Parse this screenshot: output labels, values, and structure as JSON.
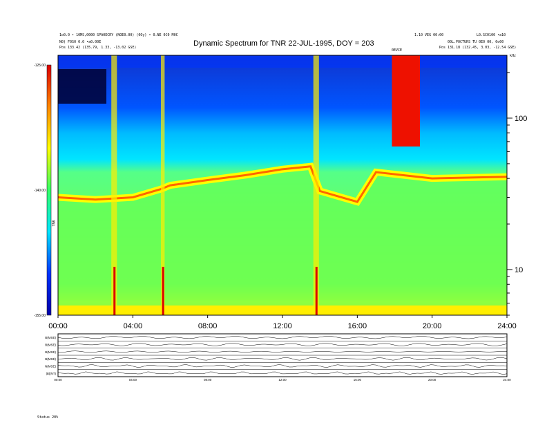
{
  "chart_data": {
    "type": "heatmap",
    "title": "Dynamic Spectrum for TNR 22-JUL-1995, DOY = 203",
    "xlabel": "",
    "ylabel": "",
    "x_ticks": [
      "00:00",
      "04:00",
      "08:00",
      "12:00",
      "16:00",
      "20:00",
      "24:00"
    ],
    "xlim": [
      0,
      24
    ],
    "y_scale": "log",
    "ylim": [
      5,
      260
    ],
    "y_ticks": [
      "100",
      "10"
    ],
    "y_unit": "kHz",
    "colorbar": {
      "label": "TNR",
      "ticks": [
        "-125.00",
        "-140.00",
        "-155.00"
      ],
      "range": [
        -155,
        -125
      ],
      "colors": [
        "#0000aa",
        "#0033ff",
        "#00e5ff",
        "#33ff66",
        "#ffff00",
        "#ff8800",
        "#dd0000"
      ]
    },
    "band_edges": [
      {
        "hour": 0,
        "khz": 30
      },
      {
        "hour": 2,
        "khz": 29
      },
      {
        "hour": 4,
        "khz": 30
      },
      {
        "hour": 5.5,
        "khz": 34
      },
      {
        "hour": 6,
        "khz": 36
      },
      {
        "hour": 8,
        "khz": 39
      },
      {
        "hour": 10,
        "khz": 42
      },
      {
        "hour": 12,
        "khz": 46
      },
      {
        "hour": 13.5,
        "khz": 48
      },
      {
        "hour": 14,
        "khz": 33
      },
      {
        "hour": 16,
        "khz": 28
      },
      {
        "hour": 17,
        "khz": 44
      },
      {
        "hour": 20,
        "khz": 40
      },
      {
        "hour": 24,
        "khz": 41
      }
    ],
    "bursts": [
      {
        "hour": 3.0,
        "width": 0.3
      },
      {
        "hour": 5.6,
        "width": 0.2
      },
      {
        "hour": 13.8,
        "width": 0.3
      },
      {
        "hour": 18.6,
        "width": 1.5
      }
    ]
  },
  "header": {
    "left_line1": "1o0.0 • 10MS,0000 SPA0ECRY (NOE0.00) (0Oy) • 0.NE 0C0 M0C",
    "left_line2": "N0) F0S0 0.0 •a0.00E",
    "left_line3": "Pos    133.42 (135.79, 1.33, -13.02 GSE)",
    "mid_right": "1.10 VEG 00:00",
    "right_line1": "L0.SC0100 •a10",
    "right_line2": "00L.POCTURS  TU 0E0 00, 0o00",
    "right_line3": "Pos    131.18 (132.45, 3.03, -12.54 GSE)",
    "event_tag": "0EVCE",
    "unit_tag": "kHz"
  },
  "timeseries": {
    "labels": [
      "B(MSE)",
      "B(MSE)",
      "B(MSE)",
      "B(MSE)",
      "N(MSE)",
      "|B|(NT)"
    ],
    "x_ticks": [
      "00:00",
      "04:00",
      "08:00",
      "12:00",
      "16:00",
      "20:00",
      "24:00"
    ],
    "footer": "Status    20%"
  }
}
